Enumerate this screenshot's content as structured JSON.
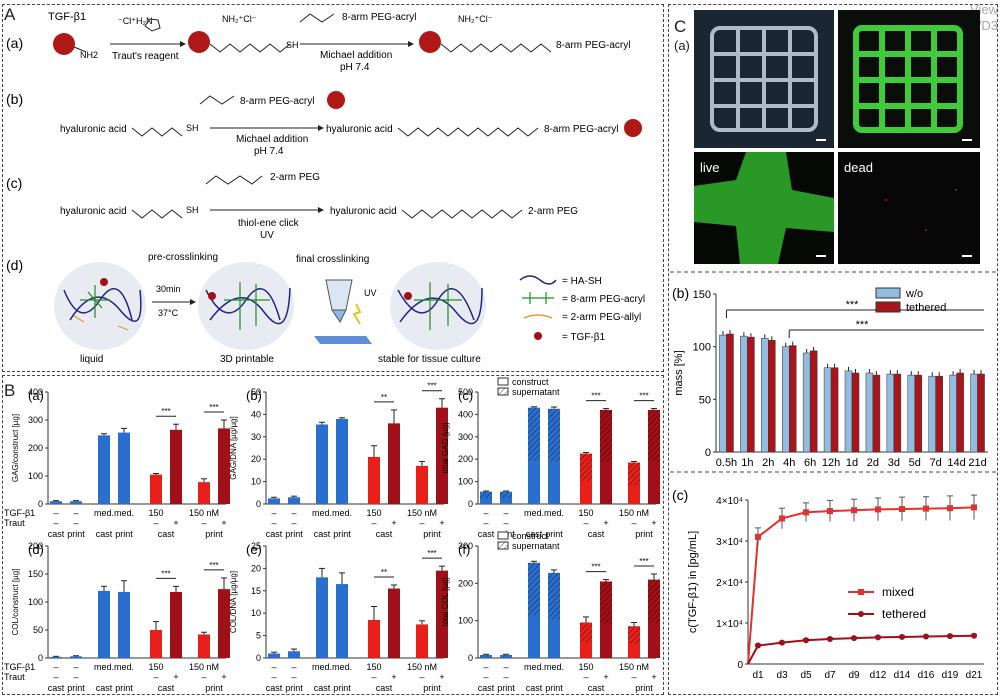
{
  "watermark": {
    "line1": "View",
    "line2": "DOI: 10.1039/D3"
  },
  "panelA": {
    "letter": "A",
    "a": {
      "label": "(a)",
      "tgf": "TGF-β1",
      "nh2": "NH2",
      "reagent": "Traut's reagent",
      "cl_reagent": "⁻Cl⁺H₂N",
      "nh2cl": "NH₂⁺Cl⁻",
      "sh": "SH",
      "peg": "8-arm PEG-acryl",
      "michael": "Michael addition",
      "ph": "pH 7.4"
    },
    "b": {
      "label": "(b)",
      "ha": "hyaluronic acid",
      "sh": "SH",
      "peg": "8-arm PEG-acryl",
      "michael": "Michael addition",
      "ph": "pH 7.4"
    },
    "c": {
      "label": "(c)",
      "ha": "hyaluronic acid",
      "sh": "SH",
      "peg": "2-arm PEG",
      "thiol": "thiol-ene click",
      "uv": "UV"
    },
    "d": {
      "label": "(d)",
      "pre": "pre-crosslinking",
      "final": "final crosslinking",
      "cond1": "30min",
      "cond2": "37°C",
      "uv": "UV",
      "liquid": "liquid",
      "printable": "3D printable",
      "stable": "stable for tissue culture",
      "legend": [
        "= HA-SH",
        "= 8-arm PEG-acryl",
        "= 2-arm PEG-allyl",
        "= TGF-β1"
      ]
    }
  },
  "panelB": {
    "letter": "B",
    "row_labels": {
      "tgf": "TGF-β1",
      "traut": "Traut"
    },
    "charts": [
      {
        "label": "(a)",
        "ylabel": "GAG/construct [µg]",
        "ylim": [
          0,
          400
        ],
        "ticks": [
          "0",
          "100",
          "200",
          "300",
          "400"
        ],
        "values": [
          10,
          10,
          245,
          255,
          105,
          265,
          78,
          270
        ],
        "errors": [
          2,
          2,
          6,
          15,
          4,
          20,
          12,
          30
        ],
        "sig": [
          "***",
          "***"
        ],
        "legend": false
      },
      {
        "label": "(b)",
        "ylabel": "GAG/DNA [µg/µg]",
        "ylim": [
          0,
          50
        ],
        "ticks": [
          "0",
          "10",
          "20",
          "30",
          "40",
          "50"
        ],
        "values": [
          2.5,
          3,
          35.5,
          38,
          21,
          36,
          17,
          43
        ],
        "errors": [
          0.5,
          0.5,
          1,
          0.5,
          5,
          6,
          2,
          4
        ],
        "sig": [
          "**",
          "***"
        ],
        "legend": false
      },
      {
        "label": "(c)",
        "ylabel": "total GAG [µg]",
        "ylim": [
          0,
          500
        ],
        "ticks": [
          "0",
          "100",
          "200",
          "300",
          "400",
          "500"
        ],
        "values": [
          55,
          55,
          430,
          425,
          225,
          420,
          185,
          420
        ],
        "errors": [
          3,
          3,
          4,
          8,
          5,
          6,
          5,
          6
        ],
        "sig": [
          "***",
          "***"
        ],
        "legend": true
      },
      {
        "label": "(d)",
        "ylabel": "COL/construct [µg]",
        "ylim": [
          0,
          200
        ],
        "ticks": [
          "0",
          "50",
          "100",
          "150",
          "200"
        ],
        "values": [
          2,
          3,
          120,
          118,
          50,
          118,
          42,
          123
        ],
        "errors": [
          1,
          1,
          8,
          20,
          15,
          10,
          4,
          20
        ],
        "sig": [
          "***",
          "***"
        ],
        "legend": false
      },
      {
        "label": "(e)",
        "ylabel": "COL/DNA [µg/µg]",
        "ylim": [
          0,
          25
        ],
        "ticks": [
          "0",
          "5",
          "10",
          "15",
          "20",
          "25"
        ],
        "values": [
          1,
          1.5,
          18,
          16.5,
          8.5,
          15.5,
          7.5,
          19.5
        ],
        "errors": [
          0.3,
          0.5,
          2,
          2.5,
          3,
          0.8,
          0.8,
          1
        ],
        "sig": [
          "**",
          "***"
        ],
        "legend": false
      },
      {
        "label": "(f)",
        "ylabel": "total COL [µg]",
        "ylim": [
          0,
          300
        ],
        "ticks": [
          "0",
          "100",
          "200",
          "300"
        ],
        "values": [
          8,
          8,
          255,
          228,
          95,
          205,
          85,
          210
        ],
        "errors": [
          2,
          2,
          4,
          8,
          15,
          5,
          10,
          15
        ],
        "sig": [
          "***",
          "***"
        ],
        "legend": true
      }
    ],
    "tgf_row": [
      "–",
      "–",
      "med.",
      "med.",
      "150",
      "",
      "150 nM",
      ""
    ],
    "traut_row": [
      "–",
      "–",
      "",
      "",
      "–",
      "+",
      "–",
      "+"
    ],
    "method_row": [
      "cast",
      "print",
      "cast",
      "print",
      "cast",
      "",
      "print",
      ""
    ],
    "legend": {
      "construct": "construct",
      "supernatant": "supernatant"
    }
  },
  "panelC": {
    "letter": "C",
    "a_label": "(a)",
    "img_labels": [
      "live",
      "dead"
    ],
    "b": {
      "label": "(b)",
      "ylabel": "mass [%]",
      "legend": [
        "w/o",
        "tethered"
      ],
      "sig": [
        "***",
        "***"
      ],
      "chart_data": {
        "type": "bar",
        "categories": [
          "0.5h",
          "1h",
          "2h",
          "4h",
          "6h",
          "12h",
          "1d",
          "2d",
          "3d",
          "5d",
          "7d",
          "14d",
          "21d"
        ],
        "series": [
          {
            "name": "w/o",
            "values": [
              111,
              110,
              108,
              100,
              94,
              80,
              77,
              75,
              74,
              73,
              72,
              73,
              74
            ]
          },
          {
            "name": "tethered",
            "values": [
              112,
              109,
              106,
              101,
              96,
              80,
              75,
              73,
              74,
              73,
              72,
              75,
              74
            ]
          }
        ],
        "ylim": [
          0,
          150
        ],
        "ticks": [
          "0",
          "50",
          "100",
          "150"
        ]
      }
    },
    "c": {
      "label": "(c)",
      "ylabel": "c(TGF-β1) in [pg/mL]",
      "legend": [
        "mixed",
        "tethered"
      ],
      "chart_data": {
        "type": "line",
        "x": [
          "d1",
          "d3",
          "d5",
          "d7",
          "d9",
          "d12",
          "d14",
          "d16",
          "d19",
          "d21"
        ],
        "series": [
          {
            "name": "mixed",
            "values": [
              31000,
              35500,
              37000,
              37300,
              37500,
              37700,
              37800,
              37900,
              38000,
              38200
            ],
            "errors": [
              2200,
              2500,
              2300,
              2600,
              2700,
              2800,
              2900,
              2900,
              3000,
              3000
            ]
          },
          {
            "name": "tethered",
            "values": [
              4500,
              5200,
              5800,
              6100,
              6300,
              6500,
              6600,
              6700,
              6800,
              6900
            ],
            "errors": [
              300,
              300,
              300,
              300,
              300,
              300,
              300,
              300,
              300,
              300
            ]
          }
        ],
        "ylim": [
          0,
          40000
        ],
        "ticks": [
          "0",
          "1×10⁴",
          "2×10⁴",
          "3×10⁴",
          "4×10⁴"
        ]
      }
    }
  },
  "colors": {
    "blue": "#2a6fce",
    "red": "#e8201c",
    "darkred": "#a01018",
    "lightblue": "#92bde0",
    "darkred2": "#a8161c"
  }
}
